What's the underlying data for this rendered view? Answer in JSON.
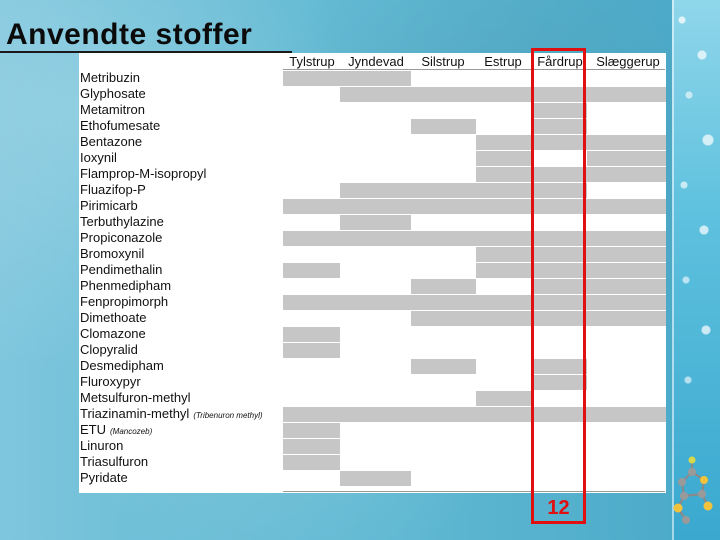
{
  "slide": {
    "title": "Anvendte stoffer",
    "page_number": "12",
    "highlighted_column": "Fårdrup"
  },
  "table": {
    "columns": [
      "Tylstrup",
      "Jyndevad",
      "Silstrup",
      "Estrup",
      "Fårdrup",
      "Slæggerup"
    ],
    "rows": [
      {
        "label": "Metribuzin",
        "note": "",
        "cells": [
          1,
          1,
          0,
          0,
          0,
          0
        ]
      },
      {
        "label": "Glyphosate",
        "note": "",
        "cells": [
          0,
          1,
          1,
          1,
          1,
          1
        ]
      },
      {
        "label": "Metamitron",
        "note": "",
        "cells": [
          0,
          0,
          0,
          0,
          1,
          0
        ]
      },
      {
        "label": "Ethofumesate",
        "note": "",
        "cells": [
          0,
          0,
          1,
          0,
          1,
          0
        ]
      },
      {
        "label": "Bentazone",
        "note": "",
        "cells": [
          0,
          0,
          0,
          1,
          1,
          1
        ]
      },
      {
        "label": "Ioxynil",
        "note": "",
        "cells": [
          0,
          0,
          0,
          1,
          0,
          1
        ]
      },
      {
        "label": "Flamprop-M-isopropyl",
        "note": "",
        "cells": [
          0,
          0,
          0,
          1,
          1,
          1
        ]
      },
      {
        "label": "Fluazifop-P",
        "note": "",
        "cells": [
          0,
          1,
          1,
          1,
          1,
          0
        ]
      },
      {
        "label": "Pirimicarb",
        "note": "",
        "cells": [
          1,
          1,
          1,
          1,
          1,
          1
        ]
      },
      {
        "label": "Terbuthylazine",
        "note": "",
        "cells": [
          0,
          1,
          0,
          0,
          0,
          0
        ]
      },
      {
        "label": "Propiconazole",
        "note": "",
        "cells": [
          1,
          1,
          1,
          1,
          1,
          1
        ]
      },
      {
        "label": "Bromoxynil",
        "note": "",
        "cells": [
          0,
          0,
          0,
          1,
          1,
          1
        ]
      },
      {
        "label": "Pendimethalin",
        "note": "",
        "cells": [
          1,
          0,
          0,
          1,
          1,
          1
        ]
      },
      {
        "label": "Phenmedipham",
        "note": "",
        "cells": [
          0,
          0,
          1,
          0,
          1,
          1
        ]
      },
      {
        "label": "Fenpropimorph",
        "note": "",
        "cells": [
          1,
          1,
          1,
          1,
          1,
          1
        ]
      },
      {
        "label": "Dimethoate",
        "note": "",
        "cells": [
          0,
          0,
          1,
          1,
          1,
          1
        ]
      },
      {
        "label": "Clomazone",
        "note": "",
        "cells": [
          1,
          0,
          0,
          0,
          0,
          0
        ]
      },
      {
        "label": "Clopyralid",
        "note": "",
        "cells": [
          1,
          0,
          0,
          0,
          0,
          0
        ]
      },
      {
        "label": "Desmedipham",
        "note": "",
        "cells": [
          0,
          0,
          1,
          0,
          1,
          0
        ]
      },
      {
        "label": "Fluroxypyr",
        "note": "",
        "cells": [
          0,
          0,
          0,
          0,
          1,
          0
        ]
      },
      {
        "label": "Metsulfuron-methyl",
        "note": "",
        "cells": [
          0,
          0,
          0,
          1,
          0,
          0
        ]
      },
      {
        "label": "Triazinamin-methyl",
        "note": "(Tribenuron methyl)",
        "cells": [
          1,
          1,
          1,
          1,
          1,
          1
        ]
      },
      {
        "label": "ETU",
        "note": "(Mancozeb)",
        "cells": [
          1,
          0,
          0,
          0,
          0,
          0
        ]
      },
      {
        "label": "Linuron",
        "note": "",
        "cells": [
          1,
          0,
          0,
          0,
          0,
          0
        ]
      },
      {
        "label": "Triasulfuron",
        "note": "",
        "cells": [
          1,
          0,
          0,
          0,
          0,
          0
        ]
      },
      {
        "label": "Pyridate",
        "note": "",
        "cells": [
          0,
          1,
          0,
          0,
          0,
          0
        ]
      }
    ]
  },
  "colors": {
    "filled_cell": "#c6c6c6",
    "highlight": "#e01010"
  },
  "icons": [
    "molecule-icon"
  ]
}
